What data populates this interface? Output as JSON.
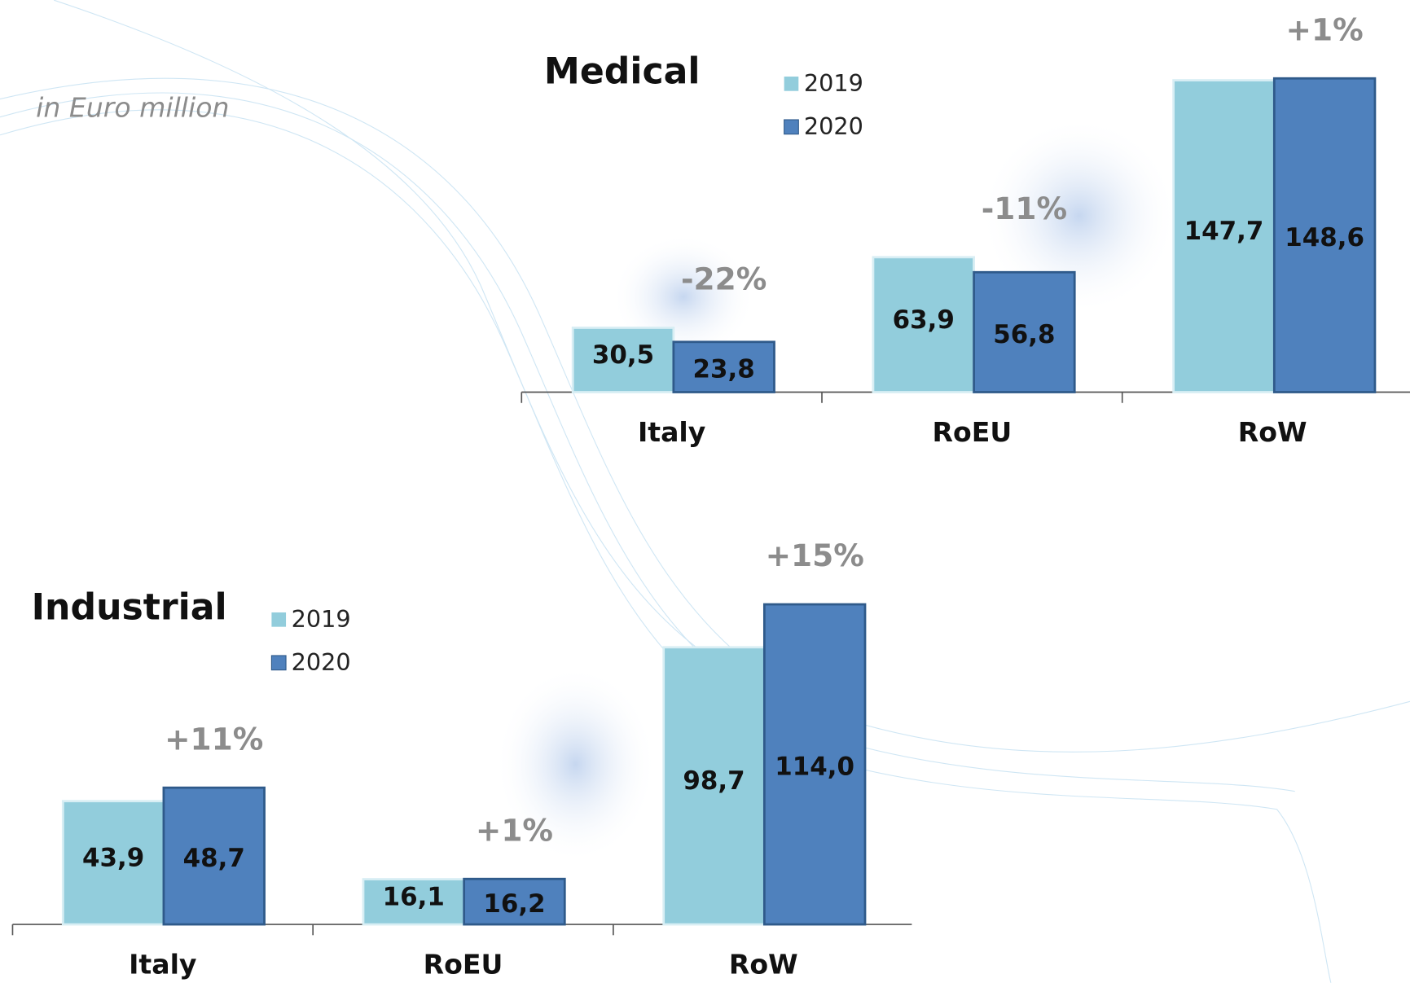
{
  "chart_data": [
    {
      "type": "bar",
      "title": "Medical",
      "subtitle": "in Euro million",
      "categories": [
        "Italy",
        "RoEU",
        "RoW"
      ],
      "series": [
        {
          "name": "2019",
          "color": "#92cddc",
          "values": [
            30.5,
            63.9,
            147.7
          ],
          "value_labels": [
            "30,5",
            "63,9",
            "147,7"
          ]
        },
        {
          "name": "2020",
          "color": "#4f81bd",
          "values": [
            23.8,
            56.8,
            148.6
          ],
          "value_labels": [
            "23,8",
            "56,8",
            "148,6"
          ]
        }
      ],
      "annotations": [
        "-22%",
        "-11%",
        "+1%"
      ]
    },
    {
      "type": "bar",
      "title": "Industrial",
      "categories": [
        "Italy",
        "RoEU",
        "RoW"
      ],
      "series": [
        {
          "name": "2019",
          "color": "#92cddc",
          "values": [
            43.9,
            16.1,
            98.7
          ],
          "value_labels": [
            "43,9",
            "16,1",
            "98,7"
          ]
        },
        {
          "name": "2020",
          "color": "#4f81bd",
          "values": [
            48.7,
            16.2,
            114.0
          ],
          "value_labels": [
            "48,7",
            "16,2",
            "114,0"
          ]
        }
      ],
      "annotations": [
        "+11%",
        "+1%",
        "+15%"
      ]
    }
  ]
}
